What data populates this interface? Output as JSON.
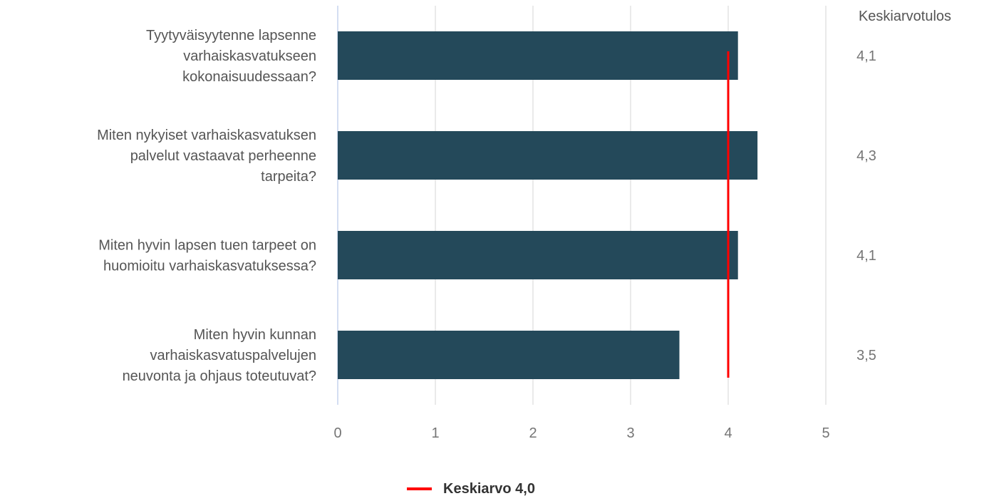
{
  "chart_data": {
    "type": "bar",
    "orientation": "horizontal",
    "categories": [
      [
        "Tyytyväisyytenne lapsenne",
        "varhaiskasvatukseen",
        "kokonaisuudessaan?"
      ],
      [
        "Miten nykyiset varhaiskasvatuksen",
        "palvelut vastaavat perheenne",
        "tarpeita?"
      ],
      [
        "Miten hyvin lapsen tuen tarpeet on",
        "huomioitu varhaiskasvatuksessa?"
      ],
      [
        "Miten hyvin kunnan",
        "varhaiskasvatuspalvelujen",
        "neuvonta ja ohjaus toteutuvat?"
      ]
    ],
    "values": [
      4.1,
      4.3,
      4.1,
      3.5
    ],
    "value_labels": [
      "4,1",
      "4,3",
      "4,1",
      "3,5"
    ],
    "value_column_header": "Keskiarvotulos",
    "xlim": [
      0,
      5
    ],
    "x_ticks": [
      "0",
      "1",
      "2",
      "3",
      "4",
      "5"
    ],
    "grid": true,
    "bar_color": "#24495a",
    "reference_line": {
      "value": 4.0,
      "label": "Keskiarvo 4,0",
      "color": "#ff0000"
    },
    "legend_position": "bottom"
  }
}
